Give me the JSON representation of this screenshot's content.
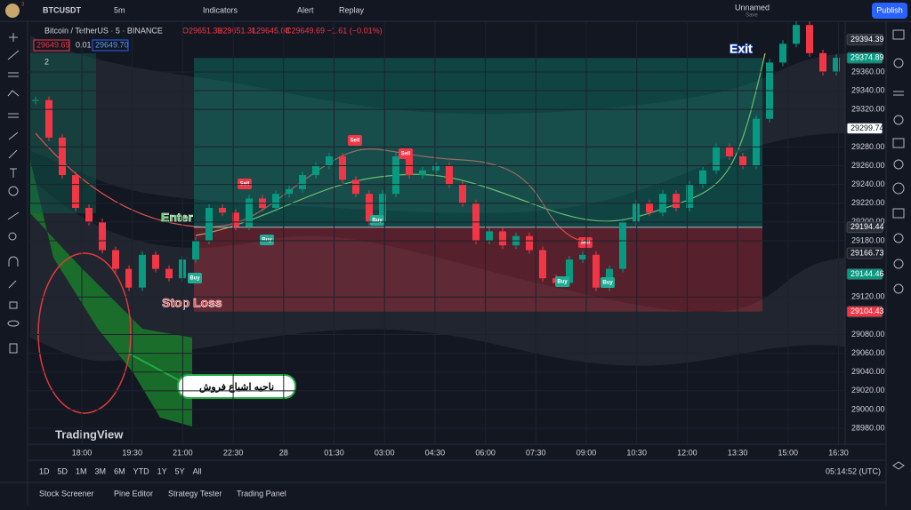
{
  "toolbar": {
    "badge": "3",
    "symbol": "BTCUSDT",
    "interval": "5m",
    "indicators": "Indicators",
    "alert": "Alert",
    "replay": "Replay",
    "layout_name": "Unnamed",
    "layout_status": "Save",
    "publish": "Publish"
  },
  "legend": {
    "symbol": "Bitcoin / TetherUS · 5 · BINANCE",
    "bid": "29649.69",
    "spread": "0.01",
    "ask": "29649.70",
    "open": "O29651.31",
    "high": "H29651.31",
    "low": "L29645.08",
    "close": "C29649.69 −1.61 (−0.01%)",
    "indicator_count": "2"
  },
  "chart_data": {
    "type": "candlestick",
    "values": [
      29330,
      29290,
      29250,
      29215,
      29200,
      29170,
      29150,
      29130,
      29165,
      29150,
      29140,
      29160,
      29180,
      29215,
      29210,
      29195,
      29225,
      29215,
      29230,
      29235,
      29250,
      29260,
      29270,
      29245,
      29230,
      29200,
      29230,
      29270,
      29250,
      29255,
      29260,
      29240,
      29220,
      29180,
      29190,
      29175,
      29185,
      29170,
      29140,
      29135,
      29160,
      29165,
      29130,
      29150,
      29200,
      29220,
      29210,
      29230,
      29215,
      29240,
      29255,
      29280,
      29270,
      29260,
      29310,
      29370,
      29390,
      29410,
      29380,
      29360,
      29375
    ],
    "up_color": "#089981",
    "down_color": "#f23645",
    "ylim": [
      28963,
      29413
    ],
    "yticks": [
      {
        "value": 29360,
        "label": "29360.00"
      },
      {
        "value": 29340,
        "label": "29340.00"
      },
      {
        "value": 29320,
        "label": "29320.00"
      },
      {
        "value": 29280,
        "label": "29280.00"
      },
      {
        "value": 29260,
        "label": "29260.00"
      },
      {
        "value": 29240,
        "label": "29240.00"
      },
      {
        "value": 29220,
        "label": "29220.00"
      },
      {
        "value": 29200,
        "label": "29200.00"
      },
      {
        "value": 29180,
        "label": "29180.00"
      },
      {
        "value": 29120,
        "label": "29120.00"
      },
      {
        "value": 29080,
        "label": "29080.00"
      },
      {
        "value": 29060,
        "label": "29060.00"
      },
      {
        "value": 29040,
        "label": "29040.00"
      },
      {
        "value": 29020,
        "label": "29020.00"
      },
      {
        "value": 29000,
        "label": "29000.00"
      },
      {
        "value": 28980,
        "label": "28980.00"
      }
    ],
    "price_badges": [
      {
        "value": 29394.39,
        "color": "#2a2e39"
      },
      {
        "value": 29374.89,
        "color": "#089981"
      },
      {
        "value": 29299.74,
        "color": "#ffffff"
      },
      {
        "value": 29194.44,
        "color": "#2a2e39"
      },
      {
        "value": 29166.73,
        "color": "#1e222d"
      },
      {
        "value": 29144.46,
        "color": "#089981"
      },
      {
        "value": 29104.43,
        "color": "#f23645"
      }
    ],
    "position": {
      "target": 29374.89,
      "entry": 29194.44,
      "stop": 29104.43
    },
    "time_labels": [
      "18:00",
      "19:30",
      "21:00",
      "22:30",
      "28",
      "01:30",
      "03:00",
      "04:30",
      "06:00",
      "07:30",
      "09:00",
      "10:30",
      "12:00",
      "13:30",
      "15:00",
      "16:30"
    ],
    "annotations": {
      "enter": "Enter",
      "exit": "Exit",
      "stop_loss": "Stop Loss",
      "zone": "ناحیه اشباع فروش"
    },
    "signals": [
      "Sell",
      "Sell",
      "Sell",
      "Sell",
      "Buy",
      "Buy",
      "Buy",
      "Buy",
      "Buy"
    ],
    "watermark": "TradingView"
  },
  "bottom": {
    "ranges": [
      "1D",
      "5D",
      "1M",
      "3M",
      "6M",
      "YTD",
      "1Y",
      "5Y",
      "All"
    ],
    "clock": "05:14:52 (UTC)",
    "tabs": [
      "Stock Screener",
      "Pine Editor",
      "Strategy Tester",
      "Trading Panel"
    ]
  }
}
